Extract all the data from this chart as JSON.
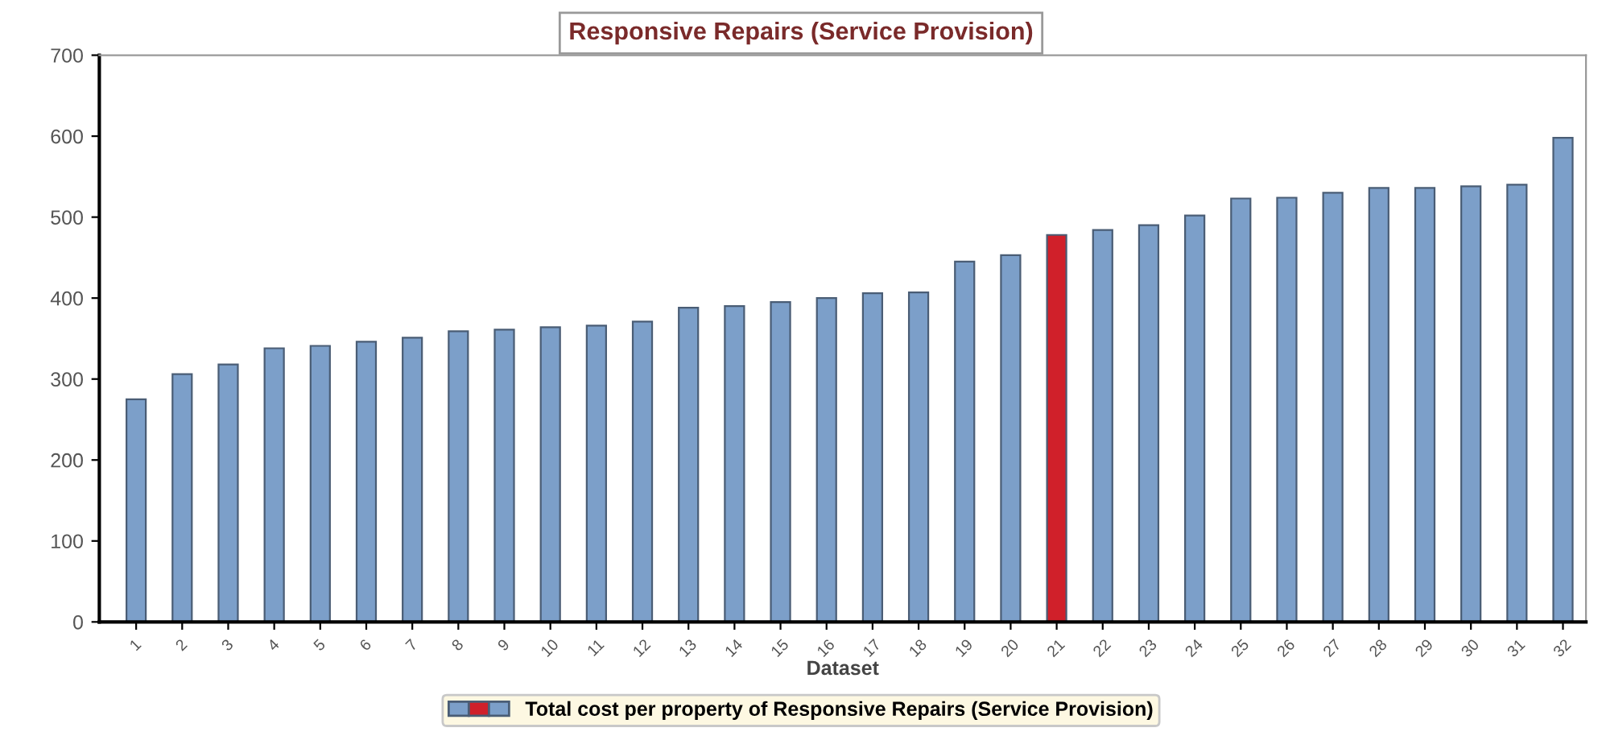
{
  "chart_data": {
    "type": "bar",
    "title": "Responsive Repairs (Service Provision)",
    "xlabel": "Dataset",
    "categories": [
      "1",
      "2",
      "3",
      "4",
      "5",
      "6",
      "7",
      "8",
      "9",
      "10",
      "11",
      "12",
      "13",
      "14",
      "15",
      "16",
      "17",
      "18",
      "19",
      "20",
      "21",
      "22",
      "23",
      "24",
      "25",
      "26",
      "27",
      "28",
      "29",
      "30",
      "31",
      "32"
    ],
    "series": [
      {
        "name": "Total cost per property of Responsive Repairs (Service Provision)",
        "values": [
          275,
          306,
          318,
          338,
          341,
          346,
          351,
          359,
          361,
          364,
          366,
          371,
          388,
          390,
          395,
          400,
          406,
          407,
          445,
          453,
          478,
          484,
          490,
          502,
          523,
          524,
          530,
          536,
          536,
          538,
          540,
          598
        ],
        "colors": [
          "#7c9fc9",
          "#7c9fc9",
          "#7c9fc9",
          "#7c9fc9",
          "#7c9fc9",
          "#7c9fc9",
          "#7c9fc9",
          "#7c9fc9",
          "#7c9fc9",
          "#7c9fc9",
          "#7c9fc9",
          "#7c9fc9",
          "#7c9fc9",
          "#7c9fc9",
          "#7c9fc9",
          "#7c9fc9",
          "#7c9fc9",
          "#7c9fc9",
          "#7c9fc9",
          "#7c9fc9",
          "#d0202a",
          "#7c9fc9",
          "#7c9fc9",
          "#7c9fc9",
          "#7c9fc9",
          "#7c9fc9",
          "#7c9fc9",
          "#7c9fc9",
          "#7c9fc9",
          "#7c9fc9",
          "#7c9fc9",
          "#7c9fc9"
        ]
      }
    ],
    "ylim": [
      0,
      700
    ],
    "yticks": [
      0,
      100,
      200,
      300,
      400,
      500,
      600,
      700
    ],
    "grid": false,
    "legend": "bottom"
  }
}
